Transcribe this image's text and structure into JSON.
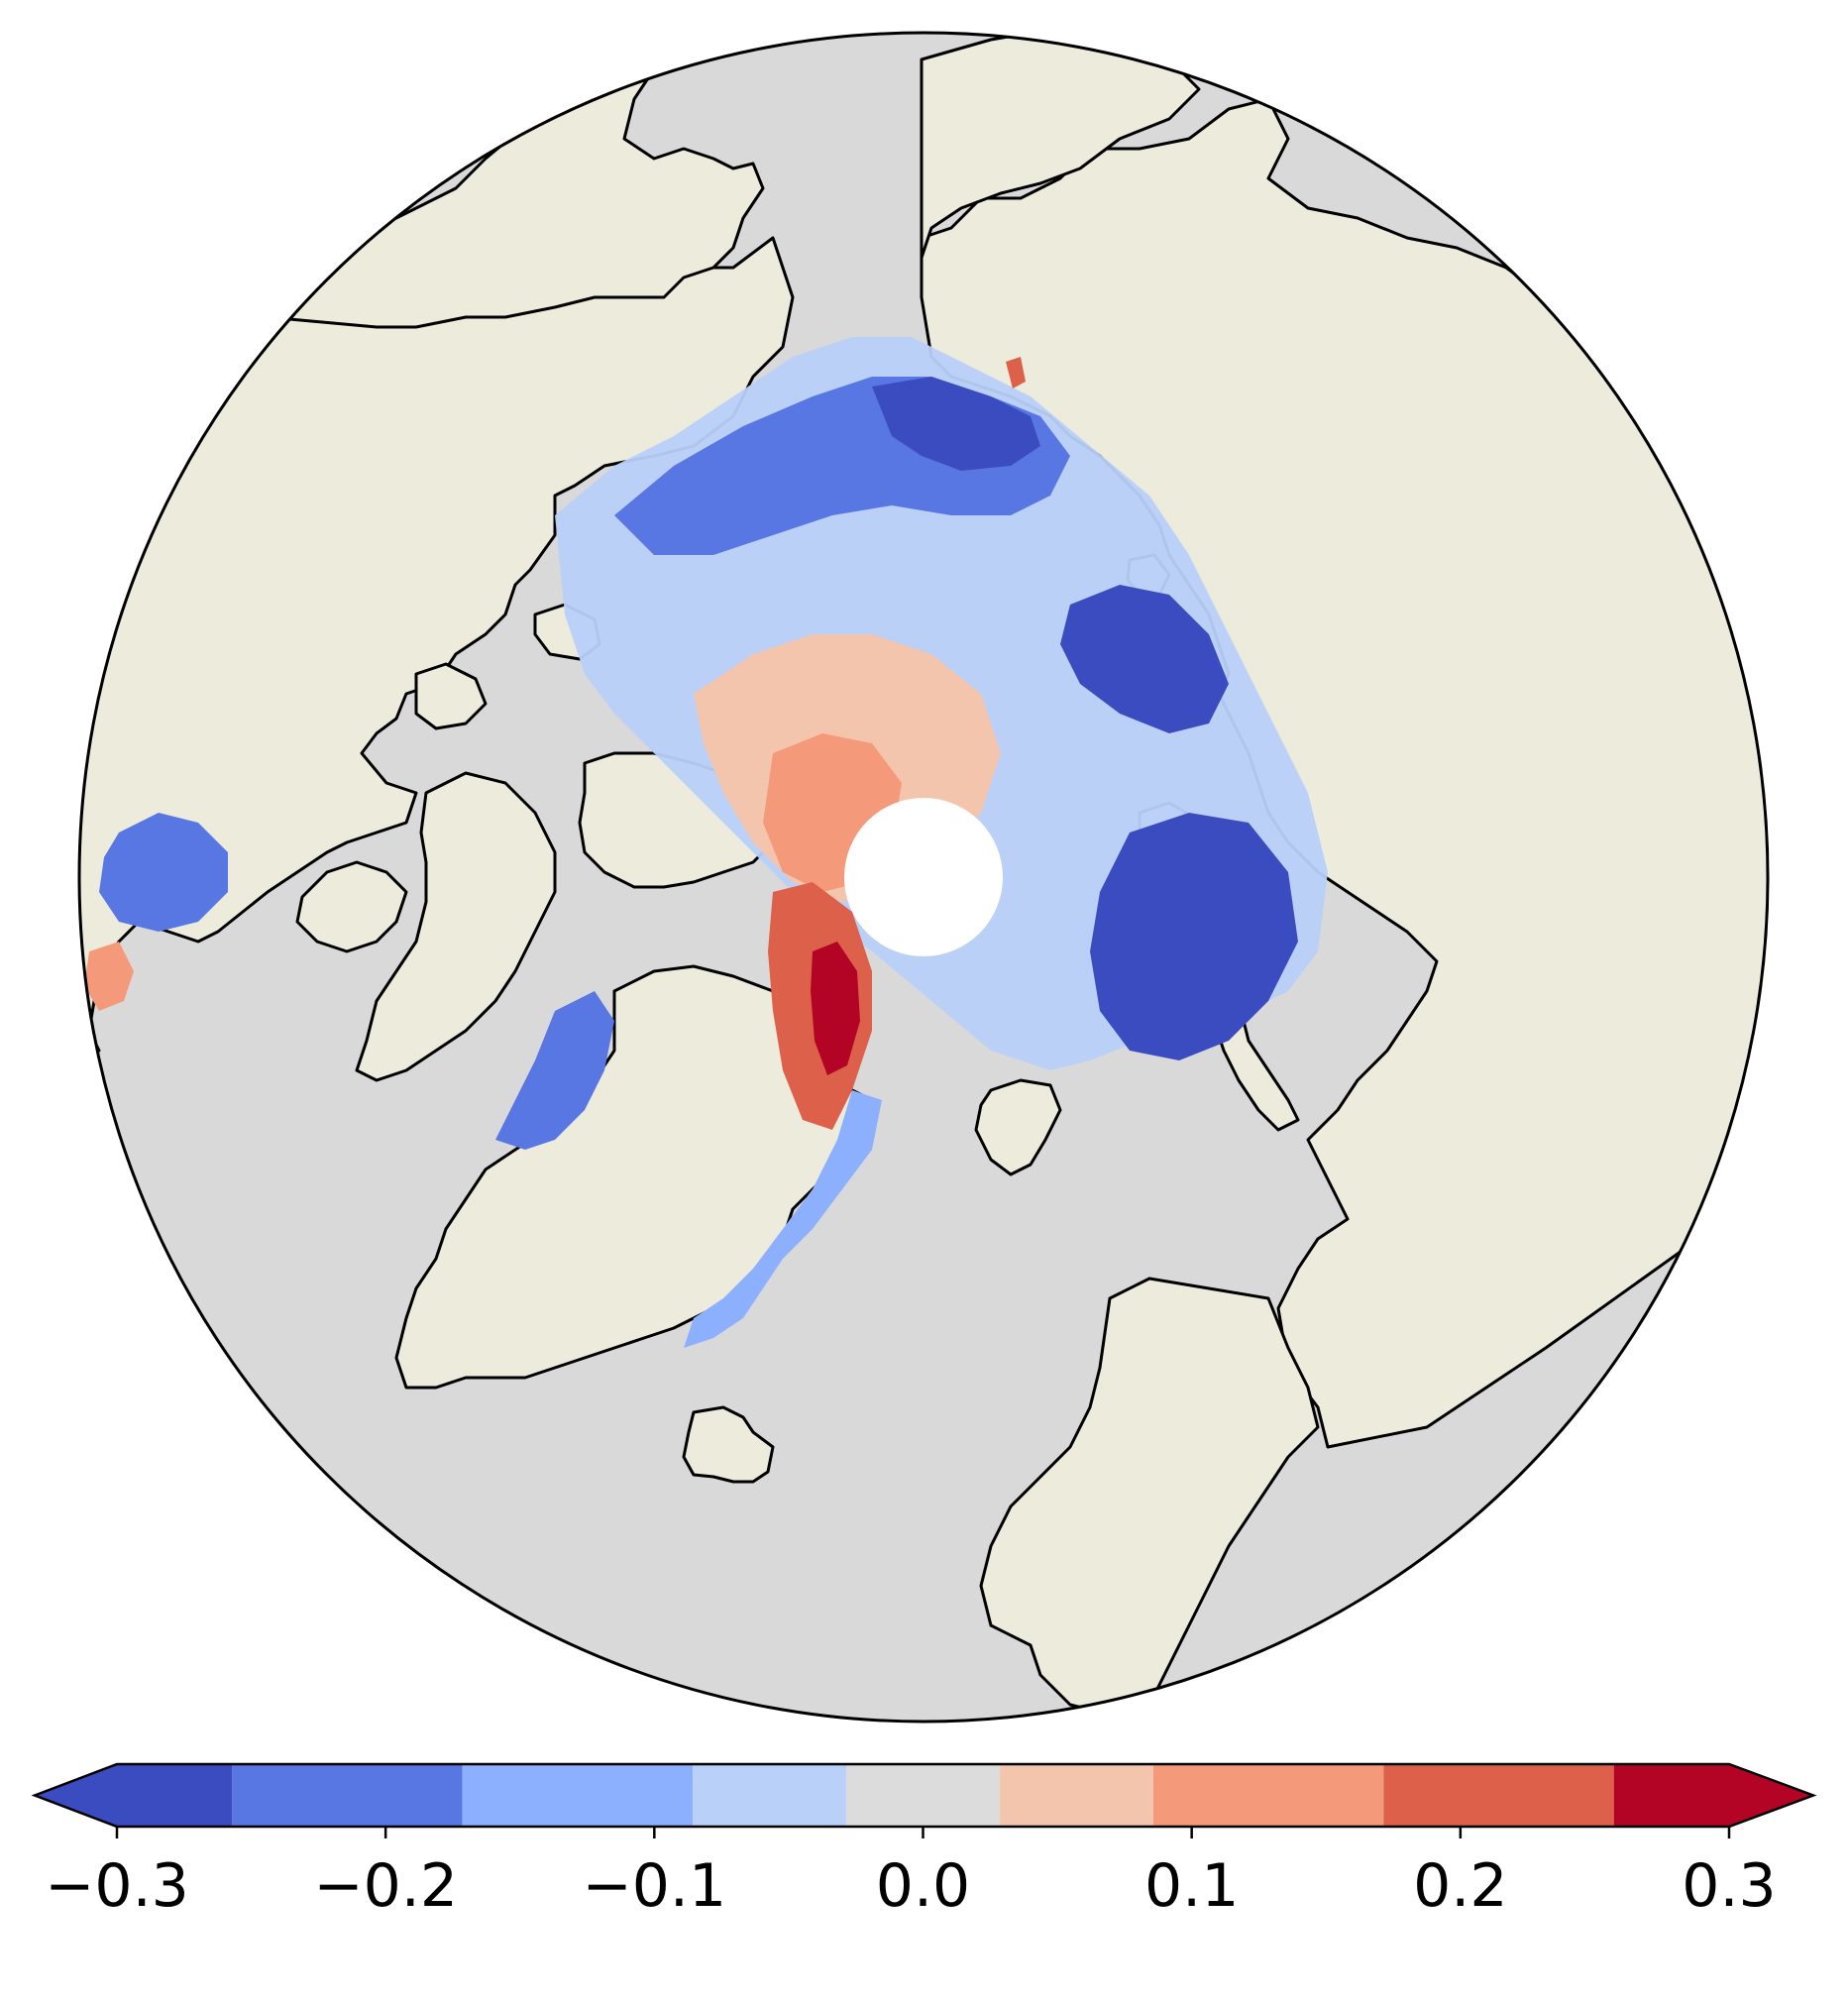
{
  "figure": {
    "projection": "north polar stereographic",
    "colormap": "coolwarm",
    "ocean_color": "#d9d9d9",
    "land_color": "#edecdc",
    "coastline_color": "#000000",
    "pole_hole_color": "#ffffff"
  },
  "colorbar": {
    "orientation": "horizontal",
    "extend": "both",
    "bins": [
      {
        "lower": null,
        "upper": -0.2571,
        "color": "#3b4cc0"
      },
      {
        "lower": -0.2571,
        "upper": -0.1714,
        "color": "#5977e3"
      },
      {
        "lower": -0.1714,
        "upper": -0.0857,
        "color": "#8db0fe"
      },
      {
        "lower": -0.0857,
        "upper": -0.0286,
        "color": "#b9d0f9"
      },
      {
        "lower": -0.0286,
        "upper": 0.0286,
        "color": "#dddcdc"
      },
      {
        "lower": 0.0286,
        "upper": 0.0857,
        "color": "#f4c5ad"
      },
      {
        "lower": 0.0857,
        "upper": 0.1714,
        "color": "#f49a7b"
      },
      {
        "lower": 0.1714,
        "upper": 0.2571,
        "color": "#dd604b"
      },
      {
        "lower": 0.2571,
        "upper": null,
        "color": "#b40426"
      }
    ],
    "ticks": [
      {
        "value": -0.3,
        "label": "−0.3"
      },
      {
        "value": -0.2,
        "label": "−0.2"
      },
      {
        "value": -0.1,
        "label": "−0.1"
      },
      {
        "value": 0.0,
        "label": "0.0"
      },
      {
        "value": 0.1,
        "label": "0.1"
      },
      {
        "value": 0.2,
        "label": "0.2"
      },
      {
        "value": 0.3,
        "label": "0.3"
      }
    ]
  }
}
